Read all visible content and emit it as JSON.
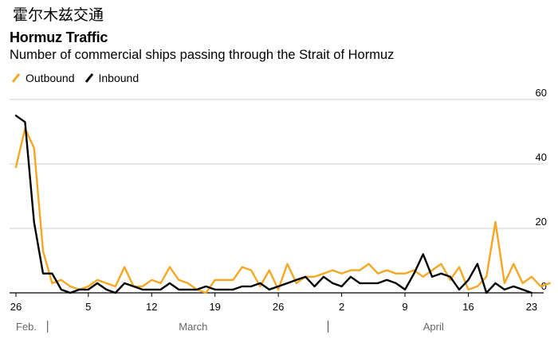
{
  "header": {
    "chinese_title": "霍尔木兹交通",
    "title": "Hormuz Traffic",
    "subtitle": "Number of commercial ships passing through the Strait of Hormuz"
  },
  "colors": {
    "outbound": "#f5a623",
    "inbound": "#000000",
    "grid": "#cfcfcf"
  },
  "chart_data": {
    "type": "line",
    "x_axis": {
      "tick_labels": [
        "26",
        "5",
        "12",
        "19",
        "26",
        "2",
        "9",
        "16",
        "23"
      ],
      "tick_day_index": [
        0,
        8,
        15,
        22,
        29,
        36,
        43,
        50,
        57
      ],
      "month_labels": [
        "Feb.",
        "March",
        "April"
      ],
      "month_label_day_index": [
        0,
        18,
        45
      ],
      "month_separator_day_index": [
        3.5,
        34.5
      ]
    },
    "ylim": [
      0,
      60
    ],
    "y_ticks": [
      0,
      20,
      40,
      60
    ],
    "grid": true,
    "legend": {
      "placement": "top-left"
    },
    "series": [
      {
        "name": "Outbound",
        "color": "#f5a623",
        "values": [
          39,
          51,
          45,
          13,
          3,
          4,
          2,
          1,
          2,
          4,
          3,
          2,
          8,
          2,
          2,
          4,
          3,
          8,
          4,
          3,
          1,
          0,
          4,
          4,
          4,
          8,
          7,
          2,
          7,
          1,
          9,
          3,
          5,
          5,
          6,
          7,
          6,
          7,
          7,
          9,
          6,
          7,
          6,
          6,
          7,
          5,
          7,
          9,
          4,
          8,
          1,
          2,
          5,
          22,
          3,
          9,
          3,
          5,
          2,
          3
        ]
      },
      {
        "name": "Inbound",
        "color": "#000000",
        "values": [
          55,
          53,
          22,
          6,
          6,
          1,
          0,
          1,
          1,
          3,
          1,
          0,
          3,
          2,
          1,
          1,
          1,
          3,
          1,
          1,
          1,
          2,
          1,
          1,
          1,
          2,
          2,
          3,
          1,
          2,
          3,
          4,
          5,
          2,
          5,
          3,
          2,
          5,
          3,
          3,
          3,
          4,
          3,
          1,
          6,
          12,
          5,
          6,
          5,
          1,
          4,
          9,
          0,
          3,
          1,
          2,
          1,
          0
        ]
      }
    ]
  }
}
